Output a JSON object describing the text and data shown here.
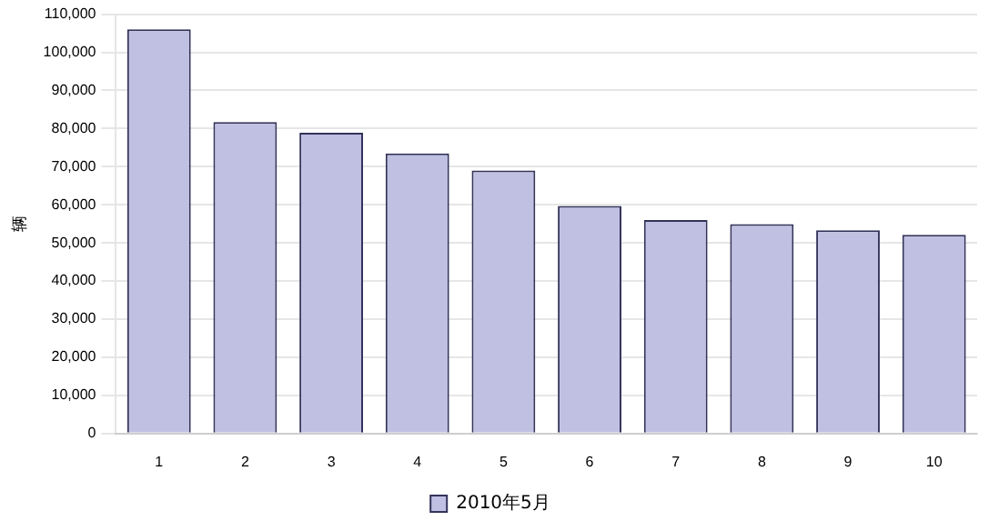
{
  "chart_data": {
    "type": "bar",
    "ylabel": "辆",
    "categories": [
      "1",
      "2",
      "3",
      "4",
      "5",
      "6",
      "7",
      "8",
      "9",
      "10"
    ],
    "series": [
      {
        "name": "2010年5月",
        "color": "#c0c0e2",
        "values": [
          106000,
          81700,
          78900,
          73500,
          69000,
          59700,
          56000,
          54900,
          53300,
          52100
        ]
      }
    ],
    "ylim": [
      0,
      110000
    ],
    "yticks": [
      {
        "value": 0,
        "label": "0"
      },
      {
        "value": 10000,
        "label": "10,000"
      },
      {
        "value": 20000,
        "label": "20,000"
      },
      {
        "value": 30000,
        "label": "30,000"
      },
      {
        "value": 40000,
        "label": "40,000"
      },
      {
        "value": 50000,
        "label": "50,000"
      },
      {
        "value": 60000,
        "label": "60,000"
      },
      {
        "value": 70000,
        "label": "70,000"
      },
      {
        "value": 80000,
        "label": "80,000"
      },
      {
        "value": 90000,
        "label": "90,000"
      },
      {
        "value": 100000,
        "label": "100,000"
      },
      {
        "value": 110000,
        "label": "110,000"
      }
    ],
    "grid": "y",
    "legend": "bottom"
  }
}
